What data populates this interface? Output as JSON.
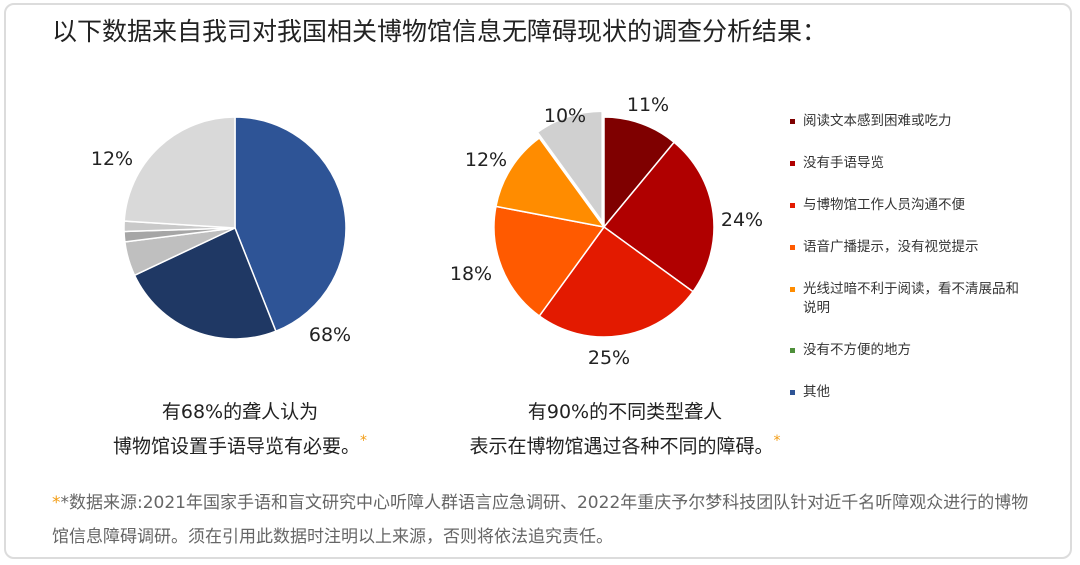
{
  "title": "以下数据来自我司对我国相关博物馆信息无障碍现状的调查分析结果：",
  "chart_data": [
    {
      "type": "pie",
      "slices": [
        {
          "value": 44,
          "color": "#2e5496"
        },
        {
          "value": 24,
          "color": "#1f3864"
        },
        {
          "value": 5,
          "color": "#bfbfbf"
        },
        {
          "value": 1.5,
          "color": "#a6a6a6"
        },
        {
          "value": 1.5,
          "color": "#c9c9c9"
        },
        {
          "value": 24,
          "color": "#d9d9d9"
        }
      ],
      "labels": [
        {
          "text": "68%"
        },
        {
          "text": "12%"
        }
      ],
      "caption": [
        "有68%的聋人认为",
        "博物馆设置手语导览有必要。"
      ]
    },
    {
      "type": "pie",
      "slices": [
        {
          "value": 11,
          "color": "#7f0000",
          "legend": 0
        },
        {
          "value": 24,
          "color": "#b00000",
          "legend": 1
        },
        {
          "value": 25,
          "color": "#e31a00",
          "legend": 2
        },
        {
          "value": 18,
          "color": "#ff5a00",
          "legend": 3
        },
        {
          "value": 12,
          "color": "#ff8c00",
          "legend": 4
        },
        {
          "value": 10,
          "color": "#d0d0d0",
          "legend": 6
        }
      ],
      "labels": [
        {
          "text": "11%"
        },
        {
          "text": "24%"
        },
        {
          "text": "25%"
        },
        {
          "text": "18%"
        },
        {
          "text": "12%"
        },
        {
          "text": "10%"
        }
      ],
      "legend": [
        {
          "label": "阅读文本感到困难或吃力",
          "color": "#7f0000"
        },
        {
          "label": "没有手语导览",
          "color": "#b00000"
        },
        {
          "label": "与博物馆工作人员沟通不便",
          "color": "#e31a00"
        },
        {
          "label": "语音广播提示，没有视觉提示",
          "color": "#ff5a00"
        },
        {
          "label": "光线过暗不利于阅读，看不清展品和说明",
          "color": "#ff8c00"
        },
        {
          "label": "没有不方便的地方",
          "color": "#4e8f3a"
        },
        {
          "label": "其他",
          "color": "#2e5496"
        }
      ],
      "caption": [
        "有90%的不同类型聋人",
        "表示在博物馆遇过各种不同的障碍。"
      ]
    }
  ],
  "footnote_mark": "*",
  "source": "*数据来源:2021年国家手语和盲文研究中心听障人群语言应急调研、2022年重庆予尔梦科技团队针对近千名听障观众进行的博物馆信息障碍调研。须在引用此数据时注明以上来源，否则将依法追究责任。"
}
